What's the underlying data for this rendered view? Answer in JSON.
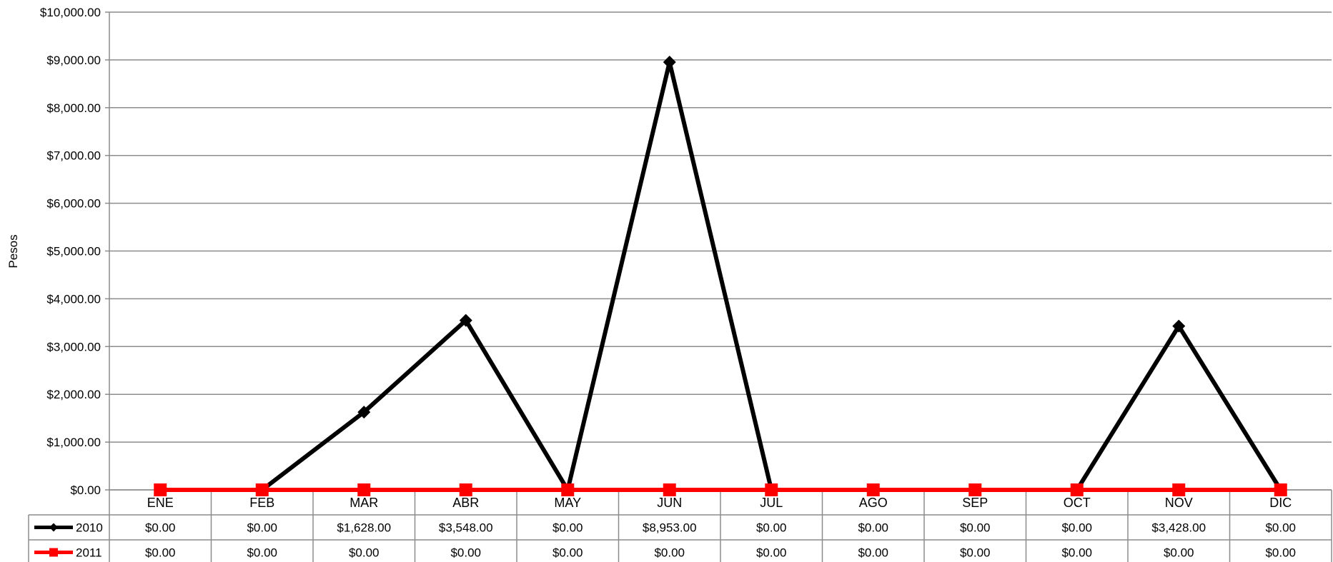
{
  "chart_data": {
    "type": "line",
    "ylabel": "Pesos",
    "ylim": [
      0,
      10000
    ],
    "ytick_labels": [
      "$0.00",
      "$1,000.00",
      "$2,000.00",
      "$3,000.00",
      "$4,000.00",
      "$5,000.00",
      "$6,000.00",
      "$7,000.00",
      "$8,000.00",
      "$9,000.00",
      "$10,000.00"
    ],
    "y_step": 1000,
    "grid": true,
    "legend": "data-table-left",
    "categories": [
      "ENE",
      "FEB",
      "MAR",
      "ABR",
      "MAY",
      "JUN",
      "JUL",
      "AGO",
      "SEP",
      "OCT",
      "NOV",
      "DIC"
    ],
    "series": [
      {
        "name": "2010",
        "color": "#000000",
        "marker": "diamond",
        "values": [
          0,
          0,
          1628,
          3548,
          0,
          8953,
          0,
          0,
          0,
          0,
          3428,
          0
        ],
        "value_labels": [
          "$0.00",
          "$0.00",
          "$1,628.00",
          "$3,548.00",
          "$0.00",
          "$8,953.00",
          "$0.00",
          "$0.00",
          "$0.00",
          "$0.00",
          "$3,428.00",
          "$0.00"
        ]
      },
      {
        "name": "2011",
        "color": "#ff0000",
        "marker": "square",
        "values": [
          0,
          0,
          0,
          0,
          0,
          0,
          0,
          0,
          0,
          0,
          0,
          0
        ],
        "value_labels": [
          "$0.00",
          "$0.00",
          "$0.00",
          "$0.00",
          "$0.00",
          "$0.00",
          "$0.00",
          "$0.00",
          "$0.00",
          "$0.00",
          "$0.00",
          "$0.00"
        ]
      }
    ]
  }
}
